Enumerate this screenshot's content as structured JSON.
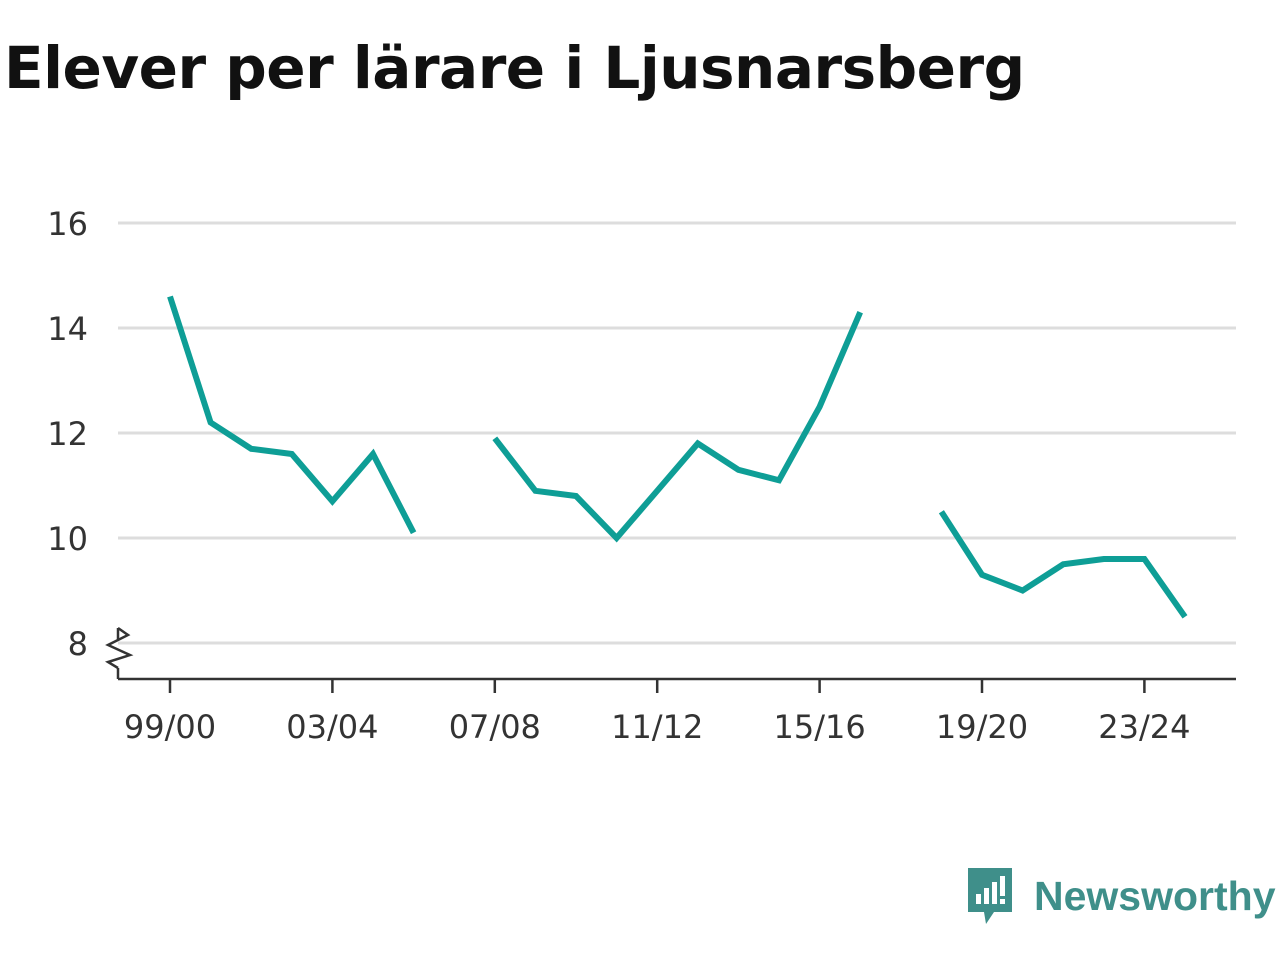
{
  "title": "Elever per lärare i Ljusnarsberg",
  "brand": {
    "name": "Newsworthy",
    "icon": "newsworthy-logo-icon",
    "color": "#3f8f8a"
  },
  "colors": {
    "line": "#0e9e96",
    "grid": "#dddddd",
    "axis": "#333333"
  },
  "chart_data": {
    "type": "line",
    "title": "Elever per lärare i Ljusnarsberg",
    "xlabel": "",
    "ylabel": "",
    "x": [
      "99/00",
      "00/01",
      "01/02",
      "02/03",
      "03/04",
      "04/05",
      "05/06",
      "06/07",
      "07/08",
      "08/09",
      "09/10",
      "10/11",
      "11/12",
      "12/13",
      "13/14",
      "14/15",
      "15/16",
      "16/17",
      "17/18",
      "18/19",
      "19/20",
      "20/21",
      "21/22",
      "22/23",
      "23/24",
      "24/25"
    ],
    "x_tick_labels": [
      "99/00",
      "03/04",
      "07/08",
      "11/12",
      "15/16",
      "19/20",
      "23/24"
    ],
    "y_ticks": [
      8,
      10,
      12,
      14,
      16
    ],
    "ylim": [
      7.3,
      16.2
    ],
    "y_axis_break": true,
    "grid": true,
    "series": [
      {
        "values": [
          14.6,
          12.2,
          11.7,
          11.6,
          10.7,
          11.6,
          10.1,
          null,
          11.9,
          10.9,
          10.8,
          10.0,
          10.9,
          11.8,
          11.3,
          11.1,
          12.5,
          14.3,
          null,
          10.5,
          9.3,
          9.0,
          9.5,
          9.6,
          9.6,
          8.5
        ]
      }
    ]
  }
}
